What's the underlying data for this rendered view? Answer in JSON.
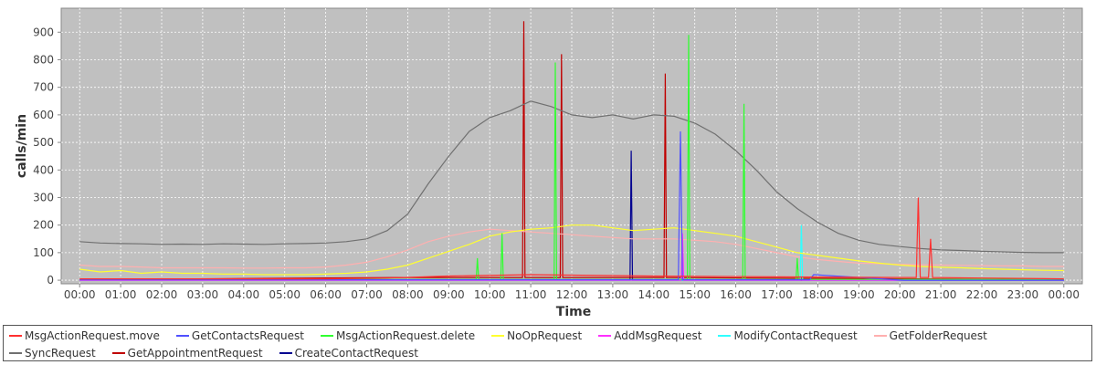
{
  "chart_data": {
    "type": "line",
    "x_label": "Time",
    "y_label": "calls/min",
    "grid": true,
    "xlim": [
      -0.45,
      24.45
    ],
    "ylim": [
      -13,
      987
    ],
    "xticks": [
      {
        "value": 0,
        "label": "00:00"
      },
      {
        "value": 1,
        "label": "01:00"
      },
      {
        "value": 2,
        "label": "02:00"
      },
      {
        "value": 3,
        "label": "03:00"
      },
      {
        "value": 4,
        "label": "04:00"
      },
      {
        "value": 5,
        "label": "05:00"
      },
      {
        "value": 6,
        "label": "06:00"
      },
      {
        "value": 7,
        "label": "07:00"
      },
      {
        "value": 8,
        "label": "08:00"
      },
      {
        "value": 9,
        "label": "09:00"
      },
      {
        "value": 10,
        "label": "10:00"
      },
      {
        "value": 11,
        "label": "11:00"
      },
      {
        "value": 12,
        "label": "12:00"
      },
      {
        "value": 13,
        "label": "13:00"
      },
      {
        "value": 14,
        "label": "14:00"
      },
      {
        "value": 15,
        "label": "15:00"
      },
      {
        "value": 16,
        "label": "16:00"
      },
      {
        "value": 17,
        "label": "17:00"
      },
      {
        "value": 18,
        "label": "18:00"
      },
      {
        "value": 19,
        "label": "19:00"
      },
      {
        "value": 20,
        "label": "20:00"
      },
      {
        "value": 21,
        "label": "21:00"
      },
      {
        "value": 22,
        "label": "22:00"
      },
      {
        "value": 23,
        "label": "23:00"
      },
      {
        "value": 24,
        "label": "00:00"
      }
    ],
    "yticks": [
      0,
      100,
      200,
      300,
      400,
      500,
      600,
      700,
      800,
      900
    ],
    "x": [
      0,
      0.5,
      1,
      1.5,
      2,
      2.5,
      3,
      3.5,
      4,
      4.5,
      5,
      5.5,
      6,
      6.5,
      7,
      7.5,
      8,
      8.5,
      9,
      9.5,
      10,
      10.5,
      11,
      11.5,
      12,
      12.5,
      13,
      13.5,
      14,
      14.5,
      15,
      15.5,
      16,
      16.5,
      17,
      17.5,
      18,
      18.5,
      19,
      19.5,
      20,
      20.5,
      21,
      21.5,
      22,
      22.5,
      23,
      23.5,
      24
    ],
    "series": [
      {
        "name": "MsgActionRequest.move",
        "color": "#ff3030",
        "x": [
          0,
          6,
          7.5,
          9,
          11,
          14,
          17,
          20,
          20.4,
          20.45,
          20.5,
          20.7,
          20.75,
          20.8,
          22,
          24
        ],
        "values": [
          5,
          5,
          8,
          15,
          20,
          15,
          12,
          10,
          10,
          300,
          10,
          10,
          150,
          10,
          8,
          5
        ]
      },
      {
        "name": "GetContactsRequest",
        "color": "#5050ff",
        "x": [
          0,
          14.6,
          14.65,
          14.7,
          17.8,
          17.9,
          20.1,
          24
        ],
        "values": [
          2,
          2,
          540,
          2,
          2,
          20,
          0,
          0
        ]
      },
      {
        "name": "MsgActionRequest.delete",
        "color": "#30ff30",
        "x": [
          0,
          9.67,
          9.7,
          9.73,
          10.27,
          10.3,
          10.33,
          11.57,
          11.6,
          11.63,
          14.82,
          14.85,
          14.88,
          16.17,
          16.2,
          16.23,
          17.47,
          17.5,
          17.53,
          24
        ],
        "values": [
          3,
          3,
          80,
          3,
          3,
          170,
          3,
          3,
          790,
          3,
          3,
          890,
          3,
          3,
          640,
          3,
          3,
          80,
          3,
          3
        ]
      },
      {
        "name": "NoOpRequest",
        "color": "#ffff30",
        "values": [
          40,
          30,
          35,
          25,
          30,
          25,
          25,
          22,
          22,
          20,
          20,
          20,
          22,
          25,
          30,
          40,
          55,
          80,
          105,
          130,
          160,
          175,
          185,
          190,
          200,
          200,
          190,
          180,
          185,
          190,
          180,
          170,
          160,
          140,
          120,
          100,
          90,
          80,
          70,
          62,
          55,
          50,
          47,
          45,
          42,
          40,
          38,
          36,
          35
        ]
      },
      {
        "name": "AddMsgRequest",
        "color": "#ff30ff",
        "x": [
          0,
          14.67,
          14.7,
          14.73,
          24
        ],
        "values": [
          0,
          0,
          170,
          0,
          0
        ]
      },
      {
        "name": "ModifyContactRequest",
        "color": "#30ffff",
        "x": [
          0,
          17.57,
          17.6,
          17.63,
          24
        ],
        "values": [
          0,
          0,
          200,
          0,
          0
        ]
      },
      {
        "name": "GetFolderRequest",
        "color": "#ffb0b0",
        "values": [
          55,
          50,
          50,
          48,
          45,
          45,
          45,
          45,
          44,
          44,
          45,
          45,
          48,
          55,
          65,
          85,
          110,
          140,
          160,
          175,
          185,
          180,
          175,
          170,
          165,
          160,
          155,
          150,
          150,
          150,
          145,
          140,
          130,
          115,
          100,
          85,
          75,
          68,
          62,
          60,
          58,
          56,
          55,
          54,
          53,
          52,
          52,
          50,
          50
        ]
      },
      {
        "name": "SyncRequest",
        "color": "#707070",
        "values": [
          140,
          135,
          133,
          132,
          130,
          131,
          130,
          132,
          131,
          130,
          132,
          133,
          135,
          140,
          150,
          180,
          240,
          350,
          450,
          540,
          590,
          615,
          650,
          630,
          600,
          590,
          600,
          585,
          600,
          595,
          570,
          530,
          470,
          400,
          320,
          260,
          210,
          170,
          145,
          130,
          122,
          115,
          110,
          108,
          105,
          103,
          101,
          100,
          100
        ]
      },
      {
        "name": "GetAppointmentRequest",
        "color": "#c00000",
        "x": [
          0,
          8,
          10.8,
          10.83,
          10.86,
          11.72,
          11.75,
          11.78,
          14.25,
          14.28,
          14.31,
          20,
          24
        ],
        "values": [
          2,
          10,
          10,
          940,
          10,
          10,
          820,
          10,
          10,
          750,
          10,
          5,
          2
        ]
      },
      {
        "name": "CreateContactRequest",
        "color": "#000090",
        "x": [
          0,
          13.42,
          13.45,
          13.48,
          24
        ],
        "values": [
          0,
          0,
          470,
          0,
          0
        ]
      }
    ]
  }
}
